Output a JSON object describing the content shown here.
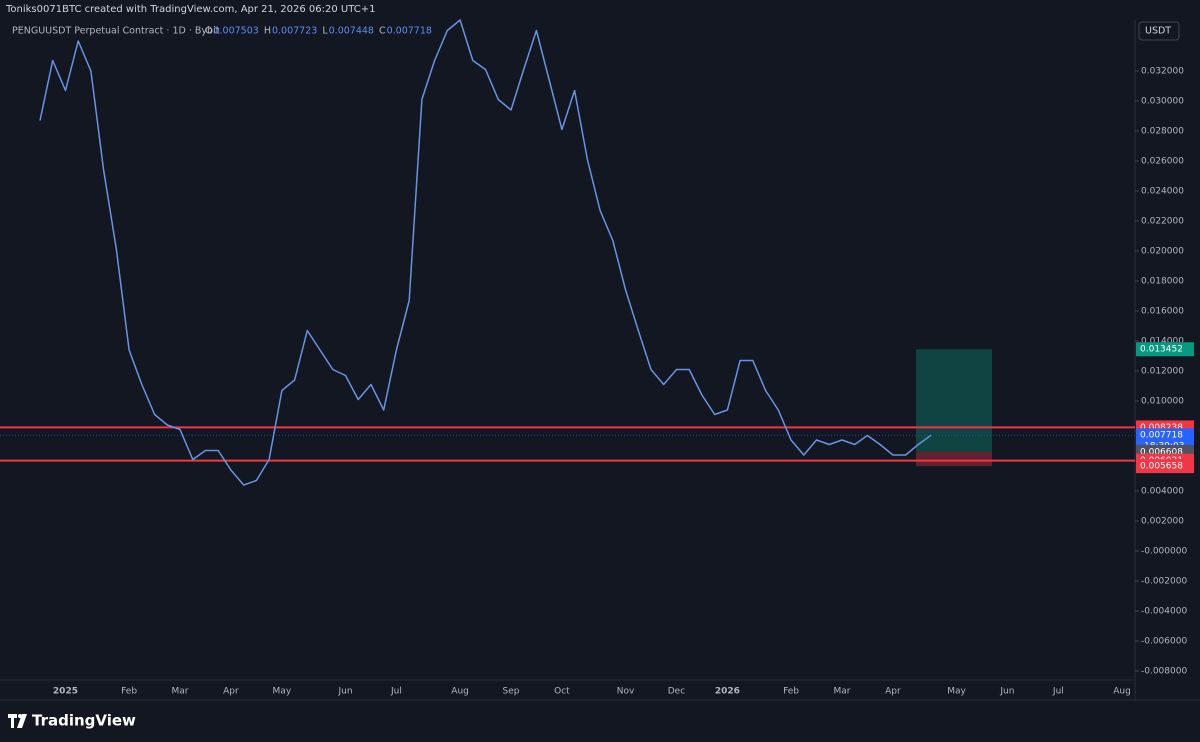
{
  "chart_data": {
    "type": "line",
    "watermark": "Toniks0071BTC created with TradingView.com, Apr 21, 2026 06:20 UTC+1",
    "title": "PENGUUSDT Perpetual Contract · 1D · Bybit",
    "ohlc": [
      {
        "label": "O",
        "value": 0.007503
      },
      {
        "label": "H",
        "value": 0.007723
      },
      {
        "label": "L",
        "value": 0.007448
      },
      {
        "label": "C",
        "value": 0.007718
      }
    ],
    "currency": "USDT",
    "brand": "TradingView",
    "countdown": "18:39:03",
    "categories": [
      null,
      null,
      "2025",
      null,
      null,
      null,
      null,
      "Feb",
      null,
      null,
      null,
      "Mar",
      null,
      null,
      null,
      "Apr",
      null,
      null,
      null,
      "May",
      null,
      null,
      null,
      null,
      "Jun",
      null,
      null,
      null,
      "Jul",
      null,
      null,
      null,
      null,
      "Aug",
      null,
      null,
      null,
      "Sep",
      null,
      null,
      null,
      "Oct",
      null,
      null,
      null,
      null,
      "Nov",
      null,
      null,
      null,
      "Dec",
      null,
      null,
      null,
      "2026",
      null,
      null,
      null,
      null,
      "Feb",
      null,
      null,
      null,
      "Mar",
      null,
      null,
      null,
      "Apr",
      null,
      null,
      null,
      null,
      "May",
      null,
      null,
      null,
      "Jun",
      null,
      null,
      null,
      "Jul",
      null,
      null,
      null,
      null,
      "Aug"
    ],
    "series": [
      {
        "name": "PENGUUSDT",
        "color": "#6a93e0",
        "values": [
          0.0287,
          0.0327,
          0.0307,
          0.034,
          0.032,
          0.0254,
          0.0201,
          0.0134,
          0.0111,
          0.0091,
          0.0084,
          0.0081,
          0.0061,
          0.0067,
          0.0067,
          0.0054,
          0.0044,
          0.0047,
          0.0061,
          0.0107,
          0.0114,
          0.0147,
          0.0134,
          0.0121,
          0.0117,
          0.0101,
          0.0111,
          0.0094,
          0.0134,
          0.0167,
          0.0301,
          0.0327,
          0.0347,
          0.0354,
          0.0327,
          0.0321,
          0.0301,
          0.0294,
          0.0321,
          0.0347,
          0.0314,
          0.0281,
          0.0307,
          0.0261,
          0.0227,
          0.0207,
          0.0174,
          0.0147,
          0.0121,
          0.0111,
          0.0121,
          0.0121,
          0.0104,
          0.0091,
          0.0094,
          0.0127,
          0.0127,
          0.0107,
          0.0094,
          0.0074,
          0.0064,
          0.0074,
          0.0071,
          0.0074,
          0.0071,
          0.0077,
          0.0071,
          0.0064,
          0.0064,
          0.0071,
          0.007718,
          null,
          null,
          null,
          null,
          null,
          null,
          null,
          null,
          null,
          null,
          null,
          null,
          null,
          null,
          null
        ]
      }
    ],
    "ylim": [
      -0.0086,
      0.0354
    ],
    "yticks": [
      {
        "value": 0.032,
        "label": "0.032000"
      },
      {
        "value": 0.03,
        "label": "0.030000"
      },
      {
        "value": 0.028,
        "label": "0.028000"
      },
      {
        "value": 0.026,
        "label": "0.026000"
      },
      {
        "value": 0.024,
        "label": "0.024000"
      },
      {
        "value": 0.022,
        "label": "0.022000"
      },
      {
        "value": 0.02,
        "label": "0.020000"
      },
      {
        "value": 0.018,
        "label": "0.018000"
      },
      {
        "value": 0.016,
        "label": "0.016000"
      },
      {
        "value": 0.014,
        "label": "0.014000"
      },
      {
        "value": 0.012,
        "label": "0.012000"
      },
      {
        "value": 0.01,
        "label": "0.010000"
      },
      {
        "value": 0.008,
        "label": "0.008000"
      },
      {
        "value": 0.006,
        "label": "0.006000"
      },
      {
        "value": 0.004,
        "label": "0.004000"
      },
      {
        "value": 0.002,
        "label": "0.002000"
      },
      {
        "value": 0,
        "label": "-0.000000"
      },
      {
        "value": -0.002,
        "label": "-0.002000"
      },
      {
        "value": -0.004,
        "label": "-0.004000"
      },
      {
        "value": -0.006,
        "label": "-0.006000"
      },
      {
        "value": -0.008,
        "label": "-0.008000"
      }
    ],
    "grid": false,
    "hlines": [
      {
        "value": 0.008238,
        "color": "#f23645"
      },
      {
        "value": 0.006021,
        "color": "#f23645"
      }
    ],
    "position": {
      "target": 0.013452,
      "entry": 0.006608,
      "stop": 0.005658,
      "target_color": "#089981",
      "entry_color": "#50535e",
      "stop_color": "#f23645",
      "last_color": "#2962ff"
    }
  }
}
